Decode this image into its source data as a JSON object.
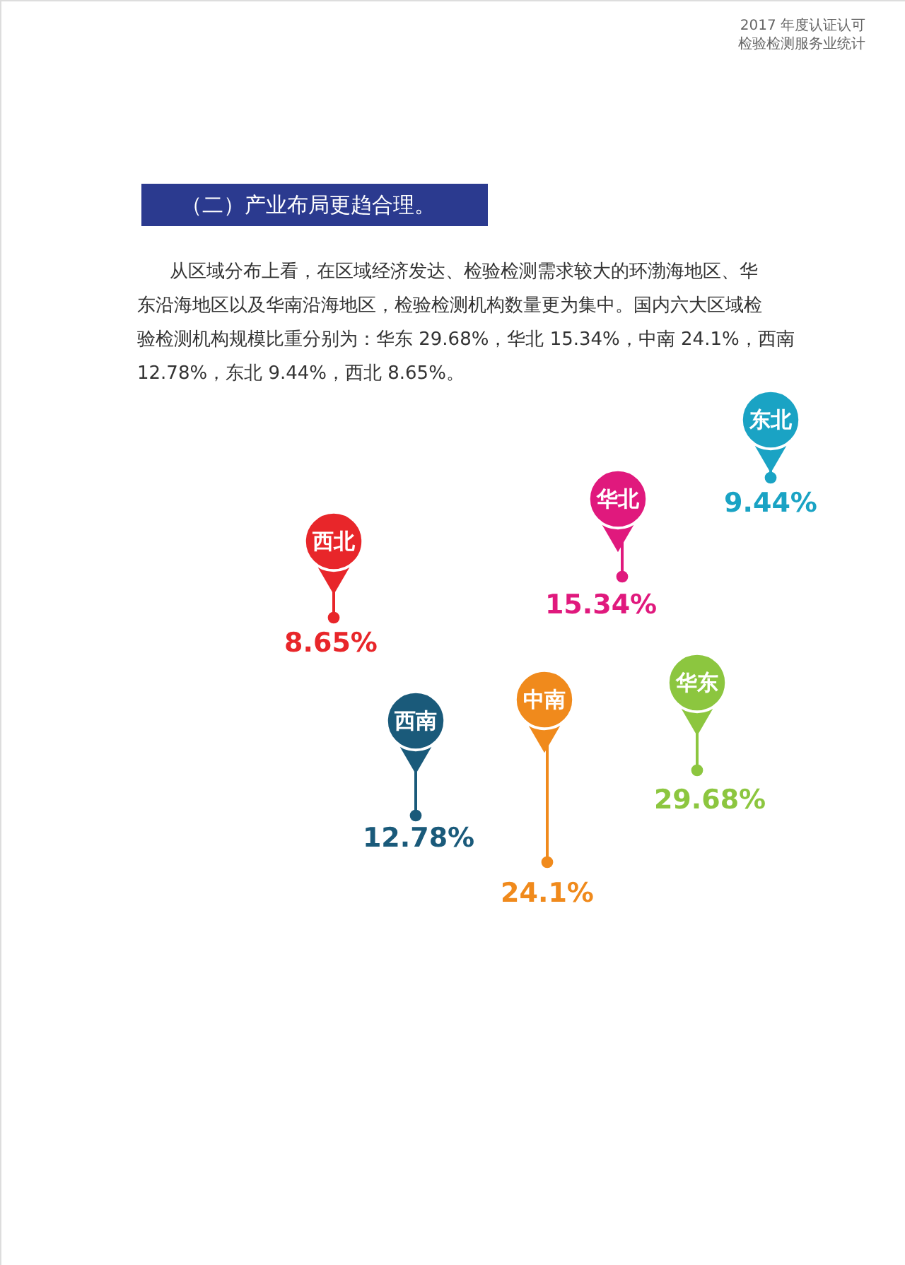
{
  "chart_data": {
    "type": "other",
    "title": "（二）产业布局更趋合理。",
    "annotations": [
      "2017 年度认证认可",
      "检验检测服务业统计",
      "从区域分布上看，在区域经济发达、检验检测需求较大的环渤海地区、华",
      "东沿海地区以及华南沿海地区，检验检测机构数量更为集中。国内六大区域检",
      "验检测机构规模比重分别为：华东 29.68%，华北 15.34%，中南 24.1%，西南",
      "12.78%，东北 9.44%，西北 8.65%。"
    ],
    "categories": [
      "东北",
      "华北",
      "西北",
      "西南",
      "中南",
      "华东"
    ],
    "values": [
      9.44,
      15.34,
      8.65,
      12.78,
      24.1,
      29.68
    ],
    "value_labels": [
      "9.44%",
      "15.34%",
      "8.65%",
      "12.78%",
      "24.1%",
      "29.68%"
    ],
    "colors": [
      "#1aa3c4",
      "#e0197d",
      "#e8262a",
      "#1a5a7a",
      "#f08a1c",
      "#8cc63f"
    ]
  }
}
